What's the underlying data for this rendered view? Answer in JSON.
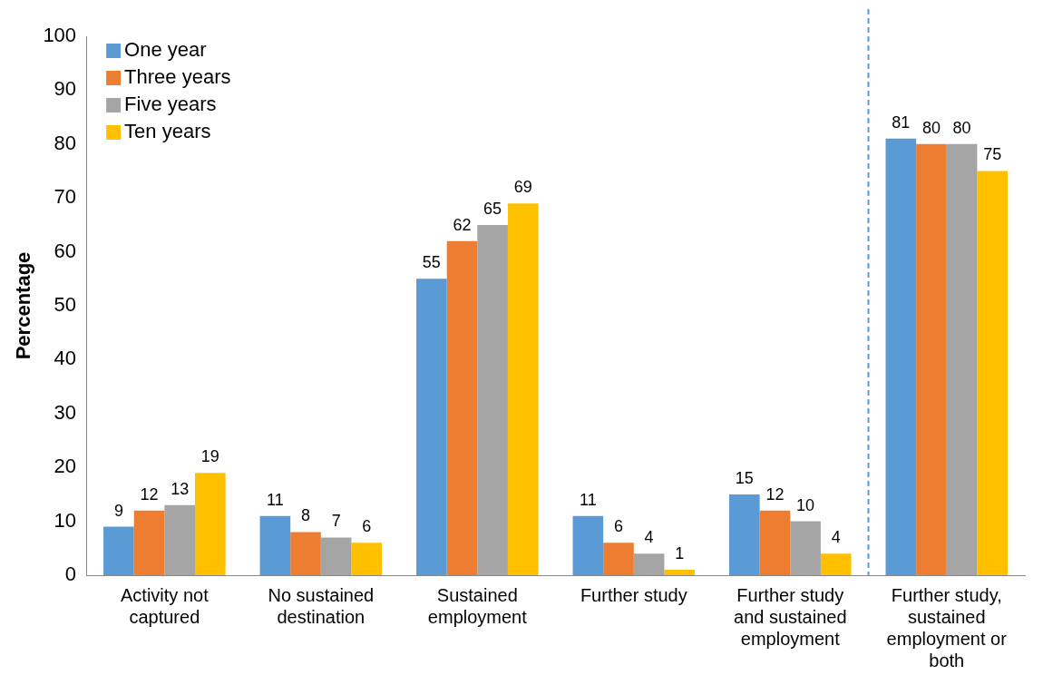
{
  "chart_data": {
    "type": "bar",
    "ylabel": "Percentage",
    "categories": [
      "Activity not captured",
      "No sustained destination",
      "Sustained employment",
      "Further study",
      "Further study and sustained employment",
      "Further study, sustained employment or both"
    ],
    "series": [
      {
        "name": "One year",
        "color": "#5b9bd5",
        "values": [
          9,
          11,
          55,
          11,
          15,
          81
        ]
      },
      {
        "name": "Three years",
        "color": "#ed7d31",
        "values": [
          12,
          8,
          62,
          6,
          12,
          80
        ]
      },
      {
        "name": "Five years",
        "color": "#a5a5a5",
        "values": [
          13,
          7,
          65,
          4,
          10,
          80
        ]
      },
      {
        "name": "Ten years",
        "color": "#ffc000",
        "values": [
          19,
          6,
          69,
          1,
          4,
          75
        ]
      }
    ],
    "ylim": [
      0,
      100
    ],
    "yticks": [
      0,
      10,
      20,
      30,
      40,
      50,
      60,
      70,
      80,
      90,
      100
    ],
    "ref_lines": [
      {
        "axis": "x",
        "value": "Further study, sustained employment or both",
        "color": "#5b9bd5",
        "line_style": "dashed"
      }
    ],
    "data_labels": true,
    "legend": "top left",
    "grid": false
  }
}
